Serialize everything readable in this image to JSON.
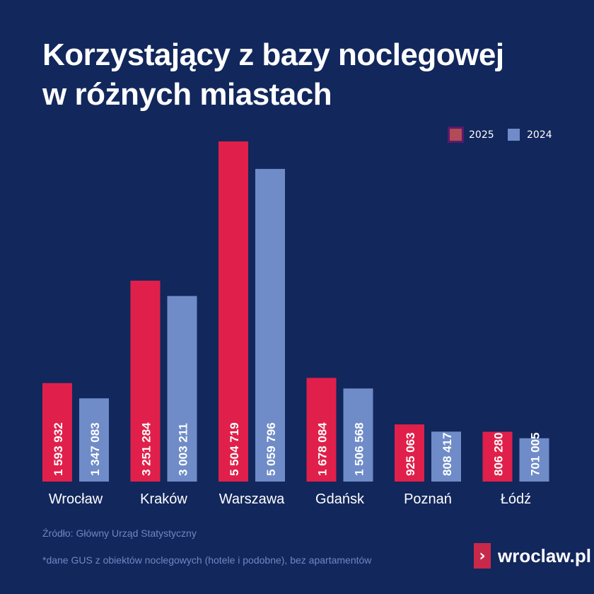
{
  "title_line1": "Korzystający z bazy noclegowej",
  "title_line2": "w różnych miastach",
  "source": "Źródło: Główny Urząd Statystyczny",
  "footnote": "*dane GUS z obiektów noclegowych (hotele i podobne), bez apartamentów",
  "logo": {
    "text": "wroclaw.pl",
    "icon": "chevron-right-icon"
  },
  "colors": {
    "background": "#12275c",
    "2025": "#e0204a",
    "2024": "#6f8cc8"
  },
  "chart_data": {
    "type": "bar",
    "title": "Korzystający z bazy noclegowej w różnych miastach",
    "categories": [
      "Wrocław",
      "Kraków",
      "Warszawa",
      "Gdańsk",
      "Poznań",
      "Łódź"
    ],
    "series": [
      {
        "name": "2025",
        "values": [
          1593932,
          3251284,
          5504719,
          1678084,
          925063,
          806280
        ],
        "labels": [
          "1 593 932",
          "3 251 284",
          "5 504 719",
          "1 678 084",
          "925 063",
          "806 280"
        ]
      },
      {
        "name": "2024",
        "values": [
          1347083,
          3003211,
          5059796,
          1506568,
          808417,
          701005
        ],
        "labels": [
          "1 347 083",
          "3 003 211",
          "5 059 796",
          "1 506 568",
          "808 417",
          "701 005"
        ]
      }
    ],
    "ylim": [
      0,
      5504719
    ],
    "grid": false,
    "legend": "top-right",
    "xlabel": "",
    "ylabel": ""
  }
}
